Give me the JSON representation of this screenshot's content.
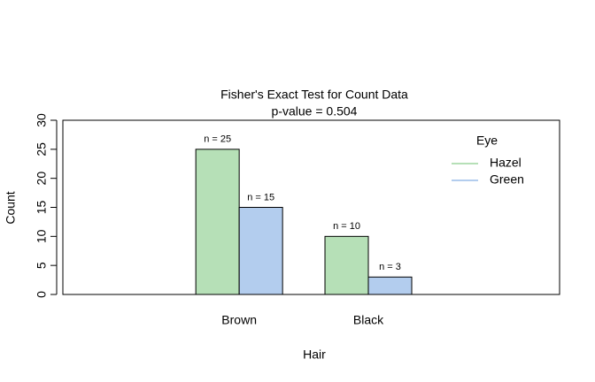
{
  "chart_data": {
    "type": "bar",
    "title": "Fisher's Exact Test for Count Data",
    "subtitle": "p-value = 0.504",
    "x_label": "Hair",
    "y_label": "Count",
    "categories": [
      "Brown",
      "Black"
    ],
    "legend_title": "Eye",
    "series": [
      {
        "name": "Hazel",
        "color": "#b6e0b7",
        "values": [
          25,
          10
        ],
        "value_labels": [
          "n = 25",
          "n = 10"
        ]
      },
      {
        "name": "Green",
        "color": "#b3cdee",
        "values": [
          15,
          3
        ],
        "value_labels": [
          "n = 15",
          "n = 3"
        ]
      }
    ],
    "ylim": [
      0,
      30
    ],
    "yticks": [
      0,
      5,
      10,
      15,
      20,
      25,
      30
    ],
    "legend": "top-right"
  }
}
